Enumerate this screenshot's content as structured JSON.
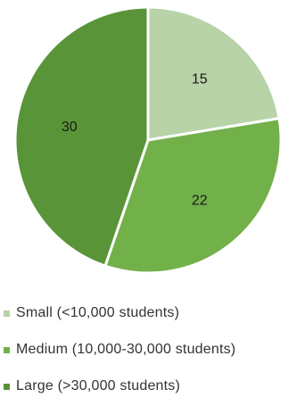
{
  "chart_data": {
    "type": "pie",
    "categories": [
      "Small (<10,000 students)",
      "Medium (10,000-30,000 students)",
      "Large (>30,000 students)"
    ],
    "values": [
      15,
      22,
      30
    ],
    "colors": [
      "#b7d3a7",
      "#72b04a",
      "#5a9438"
    ],
    "data_labels": [
      "15",
      "22",
      "30"
    ],
    "start_angle": "12 o'clock",
    "direction": "clockwise",
    "legend_position": "bottom-left"
  }
}
